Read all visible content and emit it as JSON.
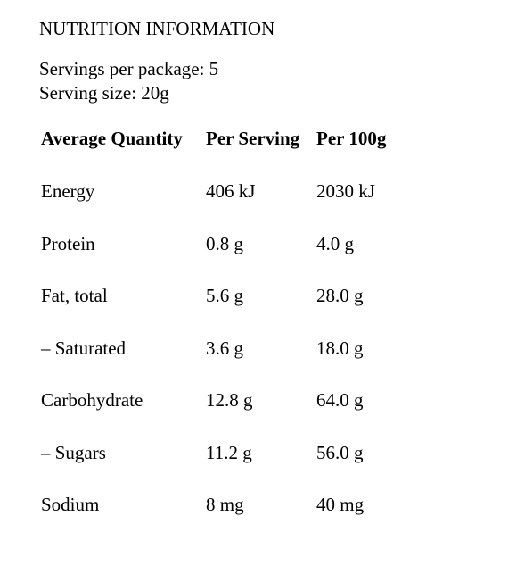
{
  "title": "NUTRITION INFORMATION",
  "servings": [
    "Servings per package: 5",
    "Serving size: 20g"
  ],
  "table": {
    "header": [
      "Average Quantity",
      "Per Serving",
      "Per 100g"
    ],
    "rows": [
      [
        "Energy",
        "406 kJ",
        "2030 kJ"
      ],
      [
        "Protein",
        "0.8 g",
        "4.0 g"
      ],
      [
        "Fat, total",
        "5.6 g",
        "28.0 g"
      ],
      [
        "– Saturated",
        "3.6 g",
        "18.0 g"
      ],
      [
        "Carbohydrate",
        "12.8 g",
        "64.0 g"
      ],
      [
        "– Sugars",
        "11.2 g",
        "56.0 g"
      ],
      [
        "Sodium",
        "8 mg",
        "40 mg"
      ]
    ]
  }
}
